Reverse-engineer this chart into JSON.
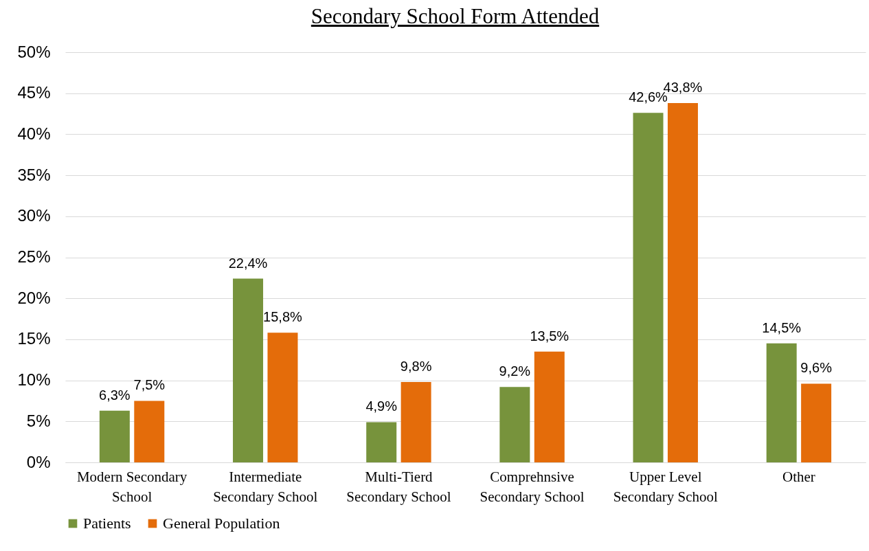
{
  "chart_data": {
    "type": "bar",
    "title": "Secondary School Form Attended",
    "categories": [
      "Modern Secondary School",
      "Intermediate Secondary School",
      "Multi-Tierd Secondary School",
      "Comprehnsive Secondary School",
      "Upper Level Secondary School",
      "Other"
    ],
    "series": [
      {
        "name": "Patients",
        "color": "#77933c",
        "values": [
          6.3,
          22.4,
          4.9,
          9.2,
          42.6,
          14.5
        ],
        "value_labels": [
          "6,3%",
          "22,4%",
          "4,9%",
          "9,2%",
          "42,6%",
          "14,5%"
        ]
      },
      {
        "name": "General Population",
        "color": "#e46c0a",
        "values": [
          7.5,
          15.8,
          9.8,
          13.5,
          43.8,
          9.6
        ],
        "value_labels": [
          "7,5%",
          "15,8%",
          "9,8%",
          "13,5%",
          "43,8%",
          "9,6%"
        ]
      }
    ],
    "ylim": [
      0,
      50
    ],
    "yticks": [
      {
        "value": 0,
        "label": "0%"
      },
      {
        "value": 5,
        "label": "5%"
      },
      {
        "value": 10,
        "label": "10%"
      },
      {
        "value": 15,
        "label": "15%"
      },
      {
        "value": 20,
        "label": "20%"
      },
      {
        "value": 25,
        "label": "25%"
      },
      {
        "value": 30,
        "label": "30%"
      },
      {
        "value": 35,
        "label": "35%"
      },
      {
        "value": 40,
        "label": "40%"
      },
      {
        "value": 45,
        "label": "45%"
      },
      {
        "value": 50,
        "label": "50%"
      }
    ],
    "grid": "y",
    "legend": "bottom"
  }
}
